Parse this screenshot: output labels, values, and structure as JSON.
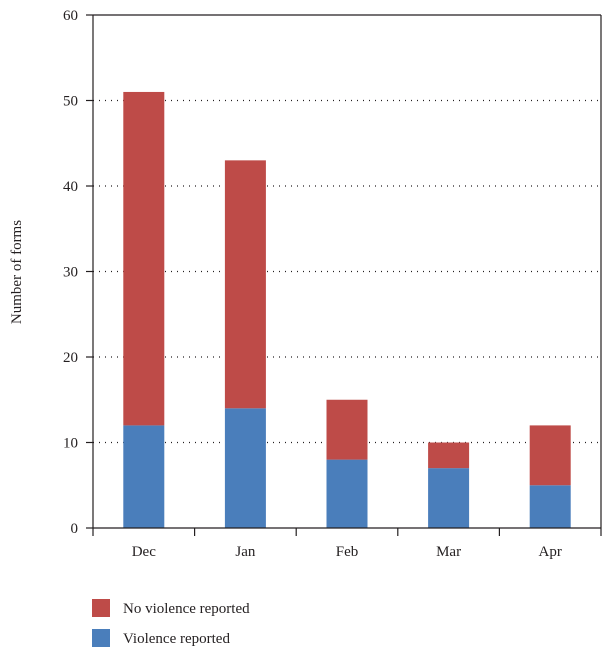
{
  "chart_data": {
    "type": "bar",
    "stacked": true,
    "categories": [
      "Dec",
      "Jan",
      "Feb",
      "Mar",
      "Apr"
    ],
    "series": [
      {
        "name": "Violence reported",
        "values": [
          12,
          14,
          8,
          7,
          5
        ],
        "color": "#4a7ebb"
      },
      {
        "name": "No violence reported",
        "values": [
          39,
          29,
          7,
          3,
          7
        ],
        "color": "#be4b48"
      }
    ],
    "title": "",
    "xlabel": "",
    "ylabel": "Number of forms",
    "ylim": [
      0,
      60
    ],
    "yticks": [
      "0",
      "10",
      "20",
      "30",
      "40",
      "50",
      "60"
    ],
    "grid": "dotted horizontal",
    "legend_position": "bottom-left",
    "legend_order": [
      "No violence reported",
      "Violence reported"
    ]
  }
}
